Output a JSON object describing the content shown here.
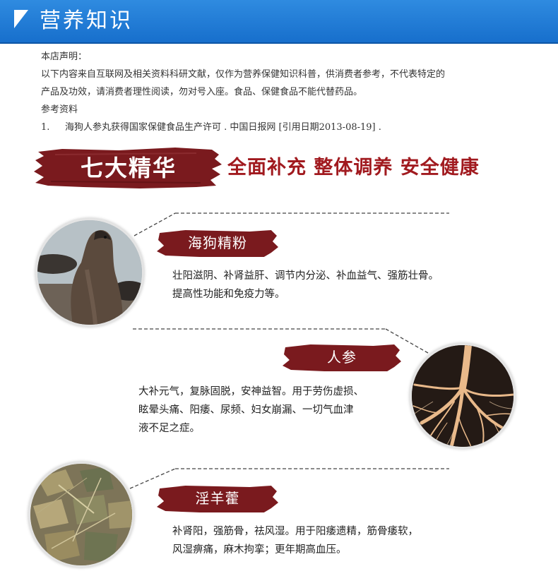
{
  "header": {
    "title": "营养知识"
  },
  "disclaimer": {
    "heading": "本店声明：",
    "body_line1": "以下内容来自互联网及相关资料科研文献，仅作为营养保健知识科普，供消费者参考，不代表特定的",
    "body_line2": "产品及功效，请消费者理性阅读，勿对号入座。食品、保健食品不能代替药品。",
    "ref_heading": "参考资料",
    "ref_number": "1.",
    "ref_text": "海狗人参丸获得国家保健食品生产许可 . 中国日报网 [引用日期2013-08-19] ."
  },
  "banner": {
    "title": "七大精华",
    "slogan": "全面补充 整体调养 安全健康"
  },
  "sections": [
    {
      "name": "海狗精粉",
      "desc_line1": "壮阳滋阴、补肾益肝、调节内分泌、补血益气、强筋壮骨。",
      "desc_line2": "提高性功能和免疫力等。"
    },
    {
      "name": "人参",
      "desc_line1": "大补元气，复脉固脱，安神益智。用于劳伤虚损、",
      "desc_line2": "眩晕头痛、阳痿、尿频、妇女崩漏、一切气血津",
      "desc_line3": "液不足之症。"
    },
    {
      "name": "淫羊藿",
      "desc_line1": "补肾阳，强筋骨，祛风湿。用于阳痿遗精，筋骨痿软，",
      "desc_line2": "风湿痹痛，麻木拘挛；更年期高血压。"
    }
  ],
  "colors": {
    "header_blue": "#1f7dd8",
    "brush_red": "#7a1a1e",
    "slogan_red": "#a11a1f"
  }
}
